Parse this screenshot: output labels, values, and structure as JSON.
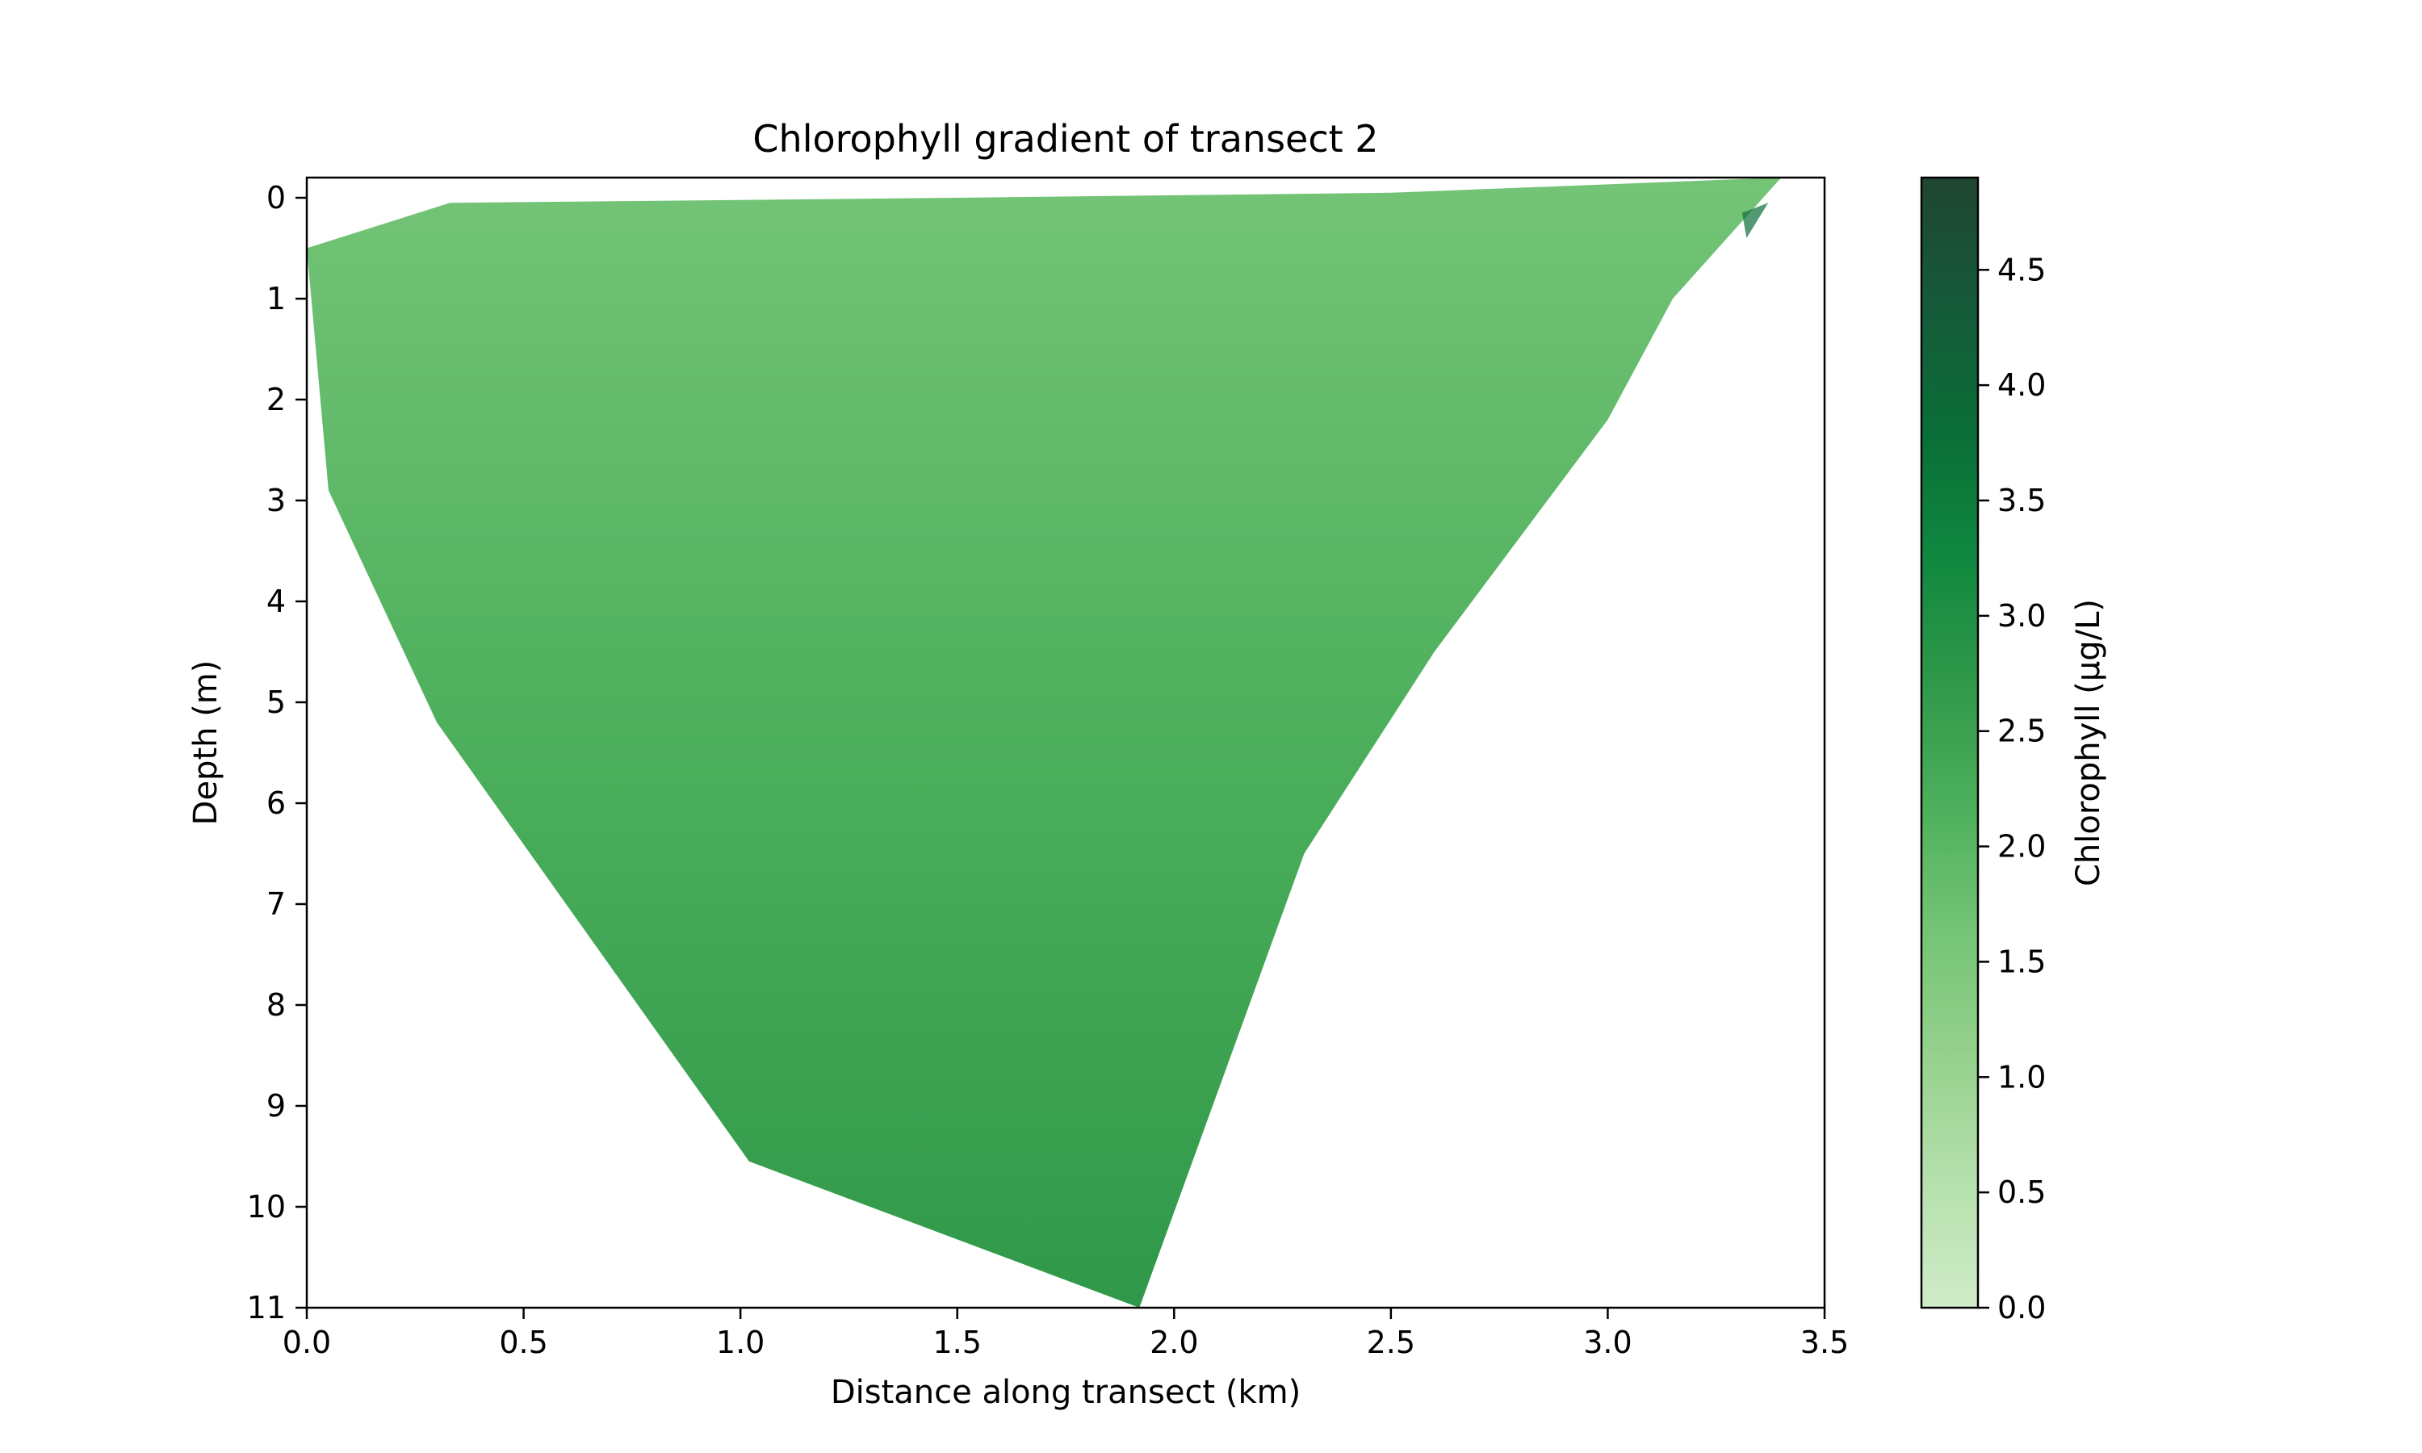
{
  "chart_data": {
    "type": "heatmap",
    "title": "Chlorophyll gradient of transect 2",
    "xlabel": "Distance along transect (km)",
    "ylabel": "Depth (m)",
    "xlim": [
      0,
      3.5
    ],
    "ylim": [
      11,
      -0.2
    ],
    "y_inverted": true,
    "x_ticks": [
      "0.0",
      "0.5",
      "1.0",
      "1.5",
      "2.0",
      "2.5",
      "3.0",
      "3.5"
    ],
    "y_ticks": [
      "0",
      "1",
      "2",
      "3",
      "4",
      "5",
      "6",
      "7",
      "8",
      "9",
      "10",
      "11"
    ],
    "colorbar": {
      "label": "Chlorophyll (µg/L)",
      "colormap": "Greens",
      "range": [
        0,
        4.9
      ],
      "ticks": [
        "0.0",
        "0.5",
        "1.0",
        "1.5",
        "2.0",
        "2.5",
        "3.0",
        "3.5",
        "4.0",
        "4.5"
      ],
      "colors": [
        "#d0ecc8",
        "#b5e0ad",
        "#96d18d",
        "#74c476",
        "#4caf5c",
        "#2f9849",
        "#0f873f",
        "#0a6d37",
        "#165a3a",
        "#1f4530"
      ]
    },
    "section_outline": [
      {
        "x": 0.0,
        "y": 0.5
      },
      {
        "x": 0.33,
        "y": 0.05
      },
      {
        "x": 1.5,
        "y": 0.0
      },
      {
        "x": 2.5,
        "y": -0.05
      },
      {
        "x": 3.4,
        "y": -0.2
      },
      {
        "x": 3.15,
        "y": 1.0
      },
      {
        "x": 3.0,
        "y": 2.2
      },
      {
        "x": 2.6,
        "y": 4.5
      },
      {
        "x": 2.3,
        "y": 6.5
      },
      {
        "x": 1.92,
        "y": 11.0
      },
      {
        "x": 1.02,
        "y": 9.55
      },
      {
        "x": 0.3,
        "y": 5.2
      },
      {
        "x": 0.05,
        "y": 2.9
      },
      {
        "x": 0.0,
        "y": 0.5
      }
    ],
    "values_summary": {
      "typical": 1.9,
      "deep_water": 2.2,
      "surface_shallow": 1.7,
      "max_at_right_surface": 4.8
    },
    "grid": false
  }
}
